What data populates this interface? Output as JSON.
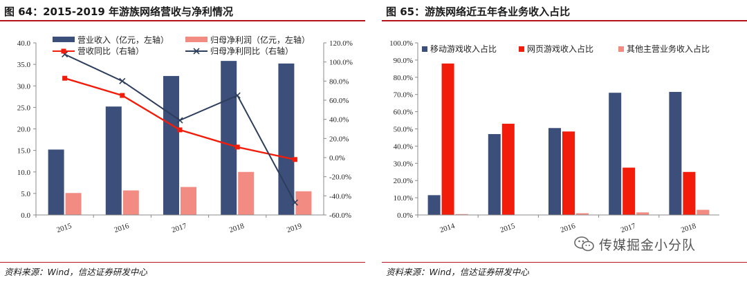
{
  "left": {
    "title": "图 64：2015-2019 年游族网络营收与净利情况",
    "source": "资料来源：Wind，信达证券研发中心"
  },
  "right": {
    "title": "图 65：游族网络近五年各业务收入占比",
    "source": "资料来源：Wind，信达证券研发中心"
  },
  "watermark": {
    "text": "传媒掘金小分队",
    "icon": "wechat-icon"
  },
  "colors": {
    "navy": "#3b4f7a",
    "red": "#f21c0a",
    "pink": "#f28b82",
    "rule": "#b5121b"
  },
  "chart_data": [
    {
      "type": "bar+line",
      "categories": [
        "2015",
        "2016",
        "2017",
        "2018",
        "2019"
      ],
      "series": [
        {
          "name": "营业收入（亿元，左轴）",
          "kind": "bar",
          "axis": "left",
          "values": [
            15.2,
            25.2,
            32.3,
            35.8,
            35.2
          ]
        },
        {
          "name": "归母净利润（亿元，左轴）",
          "kind": "bar",
          "axis": "left",
          "values": [
            5.1,
            5.7,
            6.5,
            10.0,
            5.5
          ]
        },
        {
          "name": "营收同比（右轴）",
          "kind": "line",
          "marker": "square",
          "axis": "right",
          "values": [
            83.0,
            65.0,
            29.0,
            11.0,
            -2.0
          ]
        },
        {
          "name": "归母净利同比（右轴）",
          "kind": "line",
          "marker": "x",
          "axis": "right",
          "values": [
            108.0,
            80.0,
            39.0,
            65.0,
            -47.0
          ]
        }
      ],
      "ylim_left": [
        0,
        40
      ],
      "ylim_right": [
        -60,
        120
      ],
      "yticks_left": [
        "0.0",
        "5.0",
        "10.0",
        "15.0",
        "20.0",
        "25.0",
        "30.0",
        "35.0",
        "40.0"
      ],
      "yticks_right": [
        "-60.0%",
        "-40.0%",
        "-20.0%",
        "0.0%",
        "20.0%",
        "40.0%",
        "60.0%",
        "80.0%",
        "100.0%",
        "120.0%"
      ],
      "legend": "top"
    },
    {
      "type": "bar",
      "categories": [
        "2014",
        "2015",
        "2016",
        "2017",
        "2018"
      ],
      "series": [
        {
          "name": "移动游戏收入占比",
          "values": [
            11.5,
            47.0,
            50.5,
            71.0,
            71.5
          ]
        },
        {
          "name": "网页游戏收入占比",
          "values": [
            88.0,
            53.0,
            48.5,
            27.5,
            25.0
          ]
        },
        {
          "name": "其他主营业务收入占比",
          "values": [
            0.5,
            0.0,
            1.0,
            1.5,
            3.0
          ]
        }
      ],
      "ylim": [
        0,
        100
      ],
      "yticks": [
        "0.0%",
        "10.0%",
        "20.0%",
        "30.0%",
        "40.0%",
        "50.0%",
        "60.0%",
        "70.0%",
        "80.0%",
        "90.0%",
        "100.0%"
      ],
      "legend": "top"
    }
  ]
}
